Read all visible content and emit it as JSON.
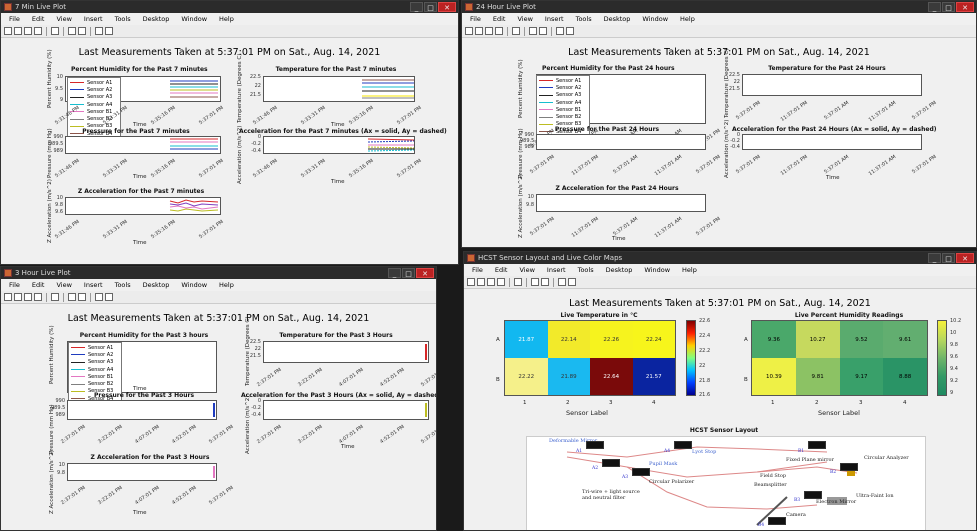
{
  "menu": [
    "File",
    "Edit",
    "View",
    "Insert",
    "Tools",
    "Desktop",
    "Window",
    "Help"
  ],
  "common": {
    "main_title": "Last Measurements Taken at 5:37:01 PM on Sat., Aug. 14, 2021",
    "x_label": "Time",
    "sensor_names": [
      "Sensor A1",
      "Sensor A2",
      "Sensor A3",
      "Sensor A4",
      "Sensor B1",
      "Sensor B2",
      "Sensor B3",
      "Sensor B4"
    ],
    "sensor_colors": [
      "#d62728",
      "#1f3cbf",
      "#222222",
      "#17becf",
      "#e377c2",
      "#7f7f7f",
      "#bcbd22",
      "#8c564b"
    ]
  },
  "win7": {
    "title": "7 Min Live Plot",
    "hum_title": "Percent Humidity for the Past 7 minutes",
    "hum_ylabel": "Percent Humidity (%)",
    "hum_yticks": [
      "10",
      "9.5",
      "9"
    ],
    "temp_title": "Temperature for the Past 7 minutes",
    "temp_ylabel": "Temperature (Degrees C)",
    "temp_yticks": [
      "22.5",
      "22",
      "21.5"
    ],
    "press_title": "Pressure for the Past 7 minutes",
    "press_ylabel": "Pressure (mm Hg)",
    "press_yticks": [
      "990",
      "989.5",
      "989"
    ],
    "acc_title": "Acceleration for the Past 7 minutes (Ax = solid, Ay = dashed)",
    "acc_ylabel": "Acceleration (m/s^2)",
    "acc_yticks": [
      "0",
      "-0.2",
      "-0.4"
    ],
    "z_title": "Z Acceleration for the Past 7 minutes",
    "z_ylabel": "Z Acceleration (m/s^2)",
    "z_yticks": [
      "10",
      "9.8",
      "9.6"
    ],
    "xticks": [
      "5:31:46 PM",
      "5:33:31 PM",
      "5:35:16 PM",
      "5:37:01 PM"
    ]
  },
  "win24": {
    "title": "24 Hour Live Plot",
    "hum_title": "Percent Humidity for the Past 24 hours",
    "hum_ylabel": "Percent Humidity (%)",
    "temp_title": "Temperature for the Past 24 Hours",
    "temp_ylabel": "Temperature (Degrees C)",
    "temp_yticks": [
      "22.5",
      "22",
      "21.5"
    ],
    "press_title": "Pressure for the Past 24 Hours",
    "press_ylabel": "Pressure (mm Hg)",
    "press_yticks": [
      "990",
      "989.5",
      "989"
    ],
    "acc_title": "Acceleration for the Past 24 Hours (Ax = solid, Ay = dashed)",
    "acc_ylabel": "Acceleration (m/s^2)",
    "acc_yticks": [
      "0",
      "-0.2",
      "-0.4"
    ],
    "z_title": "Z Acceleration for the Past 24 Hours",
    "z_ylabel": "Z Acceleration (m/s^2)",
    "z_yticks": [
      "10",
      "9.8"
    ],
    "xticks": [
      "5:37:01 PM",
      "11:37:01 PM",
      "5:37:01 AM",
      "11:37:01 AM",
      "5:37:01 PM"
    ]
  },
  "win3": {
    "title": "3 Hour Live Plot",
    "hum_title": "Percent Humidity for the Past 3 hours",
    "hum_ylabel": "Percent Humidity (%)",
    "temp_title": "Temperature for the Past 3 Hours",
    "temp_ylabel": "Temperature (Degrees C)",
    "temp_yticks": [
      "22.5",
      "22",
      "21.5"
    ],
    "press_title": "Pressure for the Past 3 Hours",
    "press_ylabel": "Pressure (mm Hg)",
    "press_yticks": [
      "990",
      "989.5",
      "989"
    ],
    "acc_title": "Acceleration for the Past 3 Hours (Ax = solid, Ay = dashed)",
    "acc_ylabel": "Acceleration (m/s^2)",
    "acc_yticks": [
      "0",
      "-0.2",
      "-0.4"
    ],
    "z_title": "Z Acceleration for the Past 3 Hours",
    "z_ylabel": "Z Acceleration (m/s^2)",
    "z_yticks": [
      "10",
      "9.8"
    ],
    "xticks": [
      "2:37:01 PM",
      "3:22:01 PM",
      "4:07:01 PM",
      "4:52:01 PM",
      "5:37:01 PM"
    ]
  },
  "hcst": {
    "title": "HCST Sensor Layout and Live Color Maps",
    "temp_map_title": "Live Temperature in °C",
    "hum_map_title": "Live Percent Humidity Readings",
    "x_label": "Sensor Label",
    "row_labels": [
      "A",
      "B"
    ],
    "col_labels": [
      "1",
      "2",
      "3",
      "4"
    ],
    "temp_values": [
      [
        "21.87",
        "22.14",
        "22.26",
        "22.24"
      ],
      [
        "22.22",
        "21.89",
        "22.64",
        "21.57"
      ]
    ],
    "temp_colors": [
      [
        "#12b8f0",
        "#f2ea2a",
        "#f6f31e",
        "#f7f51b"
      ],
      [
        "#f5f08a",
        "#1ab9f0",
        "#7a0a0a",
        "#0a24a0"
      ]
    ],
    "temp_text_colors": [
      [
        "#fff",
        "#333",
        "#333",
        "#333"
      ],
      [
        "#333",
        "#333",
        "#fff",
        "#fff"
      ]
    ],
    "temp_cbar_ticks": [
      "22.6",
      "22.4",
      "22.2",
      "22",
      "21.8",
      "21.6"
    ],
    "hum_values": [
      [
        "9.36",
        "10.27",
        "9.52",
        "9.61"
      ],
      [
        "10.39",
        "9.81",
        "9.17",
        "8.88"
      ]
    ],
    "hum_colors": [
      [
        "#4aa86a",
        "#c6d95e",
        "#5aab6e",
        "#62ae70"
      ],
      [
        "#eef046",
        "#8cc264",
        "#39a06a",
        "#2a9466"
      ]
    ],
    "hum_cbar_ticks": [
      "10.2",
      "10",
      "9.8",
      "9.6",
      "9.4",
      "9.2",
      "9"
    ],
    "layout_title": "HCST Sensor Layout",
    "layout_notes": [
      "Deformable Mirror",
      "Pupil Mask",
      "Circular Polarizer",
      "Lyot Stop",
      "Fixed Plane mirror",
      "Circular Analyzer",
      "Field Stop",
      "Beamsplitter",
      "Electron Mirror",
      "Ultra-Faint Ion",
      "Camera",
      "A1",
      "A2",
      "A3",
      "A4",
      "B1",
      "B2",
      "B3",
      "B4",
      "Tri-wire + light source and neutral filter"
    ]
  }
}
